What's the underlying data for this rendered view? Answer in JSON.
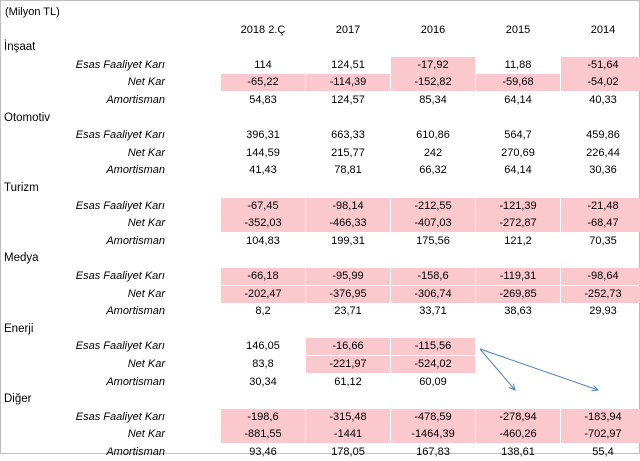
{
  "title": "(Milyon TL)",
  "years": [
    "2018 2.Ç",
    "2017",
    "2016",
    "2015",
    "2014"
  ],
  "sections": [
    {
      "name": "İnşaat",
      "rows": [
        {
          "label": "Esas Faaliyet Karı",
          "values": [
            "114",
            "124,51",
            "-17,92",
            "11,88",
            "-51,64"
          ],
          "neg": [
            false,
            false,
            true,
            false,
            true
          ]
        },
        {
          "label": "Net Kar",
          "values": [
            "-65,22",
            "-114,39",
            "-152,82",
            "-59,68",
            "-54,02"
          ],
          "neg": [
            true,
            true,
            true,
            true,
            true
          ]
        },
        {
          "label": "Amortisman",
          "values": [
            "54,83",
            "124,57",
            "85,34",
            "64,14",
            "40,33"
          ],
          "neg": [
            false,
            false,
            false,
            false,
            false
          ]
        }
      ]
    },
    {
      "name": "Otomotiv",
      "rows": [
        {
          "label": "Esas Faaliyet Karı",
          "values": [
            "396,31",
            "663,33",
            "610,86",
            "564,7",
            "459,86"
          ],
          "neg": [
            false,
            false,
            false,
            false,
            false
          ]
        },
        {
          "label": "Net Kar",
          "values": [
            "144,59",
            "215,77",
            "242",
            "270,69",
            "226,44"
          ],
          "neg": [
            false,
            false,
            false,
            false,
            false
          ]
        },
        {
          "label": "Amortisman",
          "values": [
            "41,43",
            "78,81",
            "66,32",
            "64,14",
            "30,36"
          ],
          "neg": [
            false,
            false,
            false,
            false,
            false
          ]
        }
      ]
    },
    {
      "name": "Turizm",
      "rows": [
        {
          "label": "Esas Faaliyet Karı",
          "values": [
            "-67,45",
            "-98,14",
            "-212,55",
            "-121,39",
            "-21,48"
          ],
          "neg": [
            true,
            true,
            true,
            true,
            true
          ]
        },
        {
          "label": "Net Kar",
          "values": [
            "-352,03",
            "-466,33",
            "-407,03",
            "-272,87",
            "-68,47"
          ],
          "neg": [
            true,
            true,
            true,
            true,
            true
          ]
        },
        {
          "label": "Amortisman",
          "values": [
            "104,83",
            "199,31",
            "175,56",
            "121,2",
            "70,35"
          ],
          "neg": [
            false,
            false,
            false,
            false,
            false
          ]
        }
      ]
    },
    {
      "name": "Medya",
      "rows": [
        {
          "label": "Esas Faaliyet Karı",
          "values": [
            "-66,18",
            "-95,99",
            "-158,6",
            "-119,31",
            "-98,64"
          ],
          "neg": [
            true,
            true,
            true,
            true,
            true
          ]
        },
        {
          "label": "Net Kar",
          "values": [
            "-202,47",
            "-376,95",
            "-306,74",
            "-269,85",
            "-252,73"
          ],
          "neg": [
            true,
            true,
            true,
            true,
            true
          ]
        },
        {
          "label": "Amortisman",
          "values": [
            "8,2",
            "23,71",
            "33,71",
            "38,63",
            "29,93"
          ],
          "neg": [
            false,
            false,
            false,
            false,
            false
          ]
        }
      ]
    },
    {
      "name": "Enerji",
      "rows": [
        {
          "label": "Esas Faaliyet Karı",
          "values": [
            "146,05",
            "-16,66",
            "-115,56",
            "",
            ""
          ],
          "neg": [
            false,
            true,
            true,
            false,
            false
          ]
        },
        {
          "label": "Net Kar",
          "values": [
            "83,8",
            "-221,97",
            "-524,02",
            "",
            ""
          ],
          "neg": [
            false,
            true,
            true,
            false,
            false
          ]
        },
        {
          "label": "Amortisman",
          "values": [
            "30,34",
            "61,12",
            "60,09",
            "",
            ""
          ],
          "neg": [
            false,
            false,
            false,
            false,
            false
          ]
        }
      ]
    },
    {
      "name": "Diğer",
      "rows": [
        {
          "label": "Esas Faaliyet Karı",
          "values": [
            "-198,6",
            "-315,48",
            "-478,59",
            "-278,94",
            "-183,94"
          ],
          "neg": [
            true,
            true,
            true,
            true,
            true
          ]
        },
        {
          "label": "Net Kar",
          "values": [
            "-881,55",
            "-1441",
            "-1464,39",
            "-460,26",
            "-702,97"
          ],
          "neg": [
            true,
            true,
            true,
            true,
            true
          ]
        },
        {
          "label": "Amortisman",
          "values": [
            "93,46",
            "178,05",
            "167,83",
            "138,61",
            "55,4"
          ],
          "neg": [
            false,
            false,
            false,
            false,
            false
          ]
        }
      ]
    }
  ],
  "colors": {
    "negative_highlight": "#fbc9cd",
    "arrow": "#4f81bd"
  }
}
